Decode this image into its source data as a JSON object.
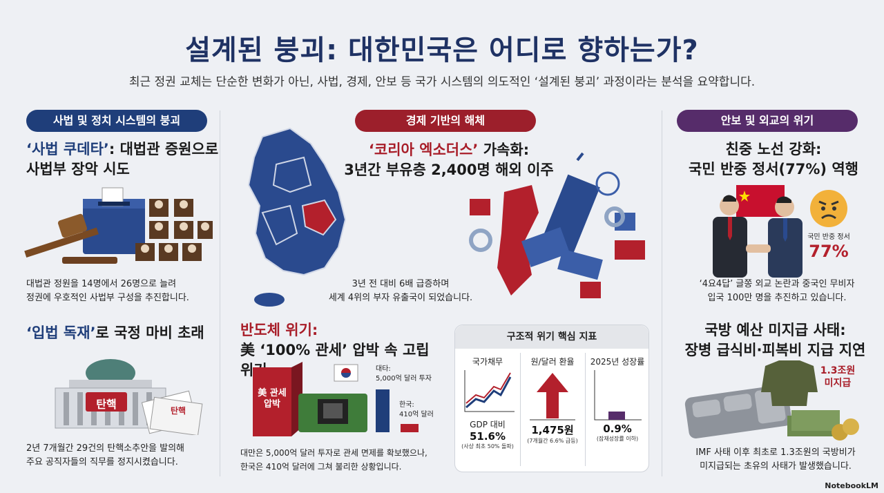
{
  "title": "설계된 붕괴: 대한민국은 어디로 향하는가?",
  "subtitle": "최근 정권 교체는 단순한 변화가 아닌, 사법, 경제, 안보 등 국가 시스템의 의도적인 ‘설계된 붕괴’ 과정이라는 분석을 요약합니다.",
  "col1": {
    "pill": "사법 및 정치 시스템의 붕괴",
    "card1": {
      "head_hl": "‘사법 쿠데타’",
      "head_rest": ": 대법관 증원으로",
      "head_line2": "사법부 장악 시도",
      "body1": "대법관 정원을 14명에서 26명으로 늘려",
      "body2": "정권에 우호적인 사법부 구성을 추진합니다."
    },
    "card2": {
      "head_hl": "‘입법 독재’",
      "head_rest": "로 국정 마비 초래",
      "stamp": "탄핵",
      "paper": "탄핵",
      "body1": "2년 7개월간 29건의 탄핵소추안을 발의해",
      "body2": "주요 공직자들의 직무를 정지시켰습니다."
    }
  },
  "col2": {
    "pill": "경제 기반의 해체",
    "card1": {
      "head_hl": "‘코리아 엑소더스’",
      "head_rest": " 가속화:",
      "head_line2": "3년간 부유층 2,400명 해외 이주",
      "body1": "3년 전 대비 6배 급증하며",
      "body2": "세계 4위의 부자 유출국이 되었습니다."
    },
    "card2": {
      "head_hl": "반도체 위기:",
      "head_line2": "美 ‘100% 관세’ 압박 속 고립 위기",
      "box_text": "美 관세 압박",
      "bar1_label1": "대타:",
      "bar1_label2": "5,000억 달러 투자",
      "bar2_label1": "한국:",
      "bar2_label2": "410억 달러",
      "body1": "대만은 5,000억 달러 투자로 관세 면제를 확보했으나,",
      "body2": "한국은 410억 달러에 그쳐 불리한 상황입니다."
    },
    "kpi": {
      "title": "구조적 위기 핵심 지표",
      "items": [
        {
          "label": "국가채무",
          "value": "GDP 대비",
          "value2": "51.6%",
          "note": "(사상 최초 50% 돌파)"
        },
        {
          "label": "원/달러 환율",
          "value": "1,475원",
          "note": "(7개월간 6.6% 급등)"
        },
        {
          "label": "2025년 성장률",
          "value": "0.9%",
          "note": "(잠재성장률 이하)"
        }
      ]
    }
  },
  "col3": {
    "pill": "안보 및 외교의 위기",
    "card1": {
      "head_line1": "친중 노선 강화:",
      "head_line2": "국민 반중 정서(77%) 역행",
      "sentiment_label": "국민 반중 정서",
      "sentiment_value": "77%",
      "body1": "‘4요4답’ 글쫑 외교 논란과 중국인 무비자",
      "body2": "입국 100만 명을 추진하고 있습니다."
    },
    "card2": {
      "head_line1": "국방 예산 미지급 사태:",
      "head_line2": "장병 급식비·피복비 지급 지연",
      "badge1": "1.3조원",
      "badge2": "미지급",
      "body1": "IMF 사태 이후 최초로 1.3조원의 국방비가",
      "body2": "미지급되는 초유의 사태가 발생했습니다."
    }
  },
  "logo": "NotebookLM",
  "colors": {
    "navy": "#1f3e7a",
    "red": "#9c1f2b",
    "purple": "#562c6a"
  }
}
